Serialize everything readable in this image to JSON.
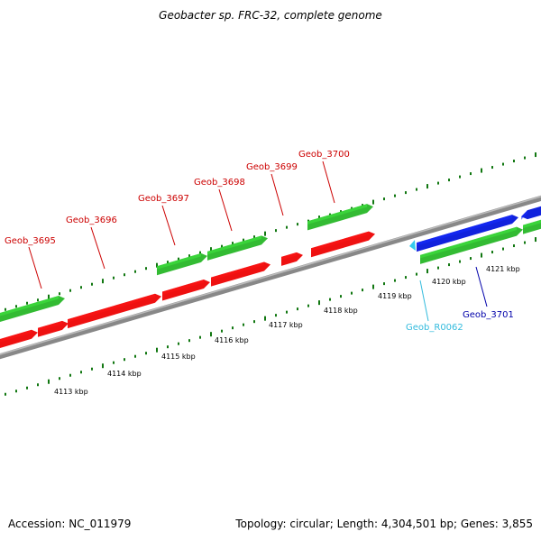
{
  "title": "Geobacter sp. FRC-32, complete genome",
  "footer": {
    "accession": "Accession: NC_011979",
    "summary": "Topology: circular; Length: 4,304,501 bp; Genes: 3,855"
  },
  "colors": {
    "forward_cds": "#33bb33",
    "reverse_cds": "#ee1111",
    "blue_cds": "#1122dd",
    "rrna": "#33ccee",
    "backbone": "#888888",
    "tick": "#117711",
    "gene_label_red": "#cc0000",
    "gene_label_blue": "#0000aa",
    "gene_label_cyan": "#33bbdd"
  },
  "tick_labels": [
    {
      "text": "4113 kbp",
      "kbp": 4113
    },
    {
      "text": "4114 kbp",
      "kbp": 4114
    },
    {
      "text": "4115 kbp",
      "kbp": 4115
    },
    {
      "text": "4116 kbp",
      "kbp": 4116
    },
    {
      "text": "4117 kbp",
      "kbp": 4117
    },
    {
      "text": "4118 kbp",
      "kbp": 4118
    },
    {
      "text": "4119 kbp",
      "kbp": 4119
    },
    {
      "text": "4120 kbp",
      "kbp": 4120
    },
    {
      "text": "4121 kbp",
      "kbp": 4121
    }
  ],
  "gene_labels": [
    {
      "text": "Geob_3695",
      "color": "red"
    },
    {
      "text": "Geob_3696",
      "color": "red"
    },
    {
      "text": "Geob_3697",
      "color": "red"
    },
    {
      "text": "Geob_3698",
      "color": "red"
    },
    {
      "text": "Geob_3699",
      "color": "red"
    },
    {
      "text": "Geob_3700",
      "color": "red"
    },
    {
      "text": "Geob_R0062",
      "color": "cyan"
    },
    {
      "text": "Geob_3701",
      "color": "blue"
    }
  ]
}
